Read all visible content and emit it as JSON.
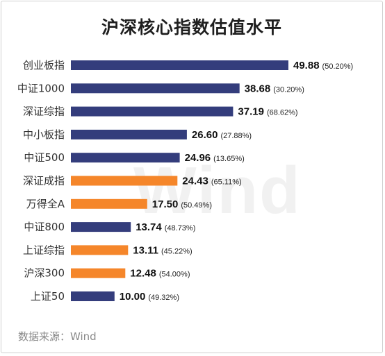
{
  "chart_data": {
    "type": "bar",
    "orientation": "horizontal",
    "title": "沪深核心指数估值水平",
    "categories": [
      "创业板指",
      "中证1000",
      "深证综指",
      "中小板指",
      "中证500",
      "深证成指",
      "万得全A",
      "中证800",
      "上证综指",
      "沪深300",
      "上证50"
    ],
    "values": [
      49.88,
      38.68,
      37.19,
      26.6,
      24.96,
      24.43,
      17.5,
      13.74,
      13.11,
      12.48,
      10.0
    ],
    "value_labels": [
      "49.88",
      "38.68",
      "37.19",
      "26.60",
      "24.96",
      "24.43",
      "17.50",
      "13.74",
      "13.11",
      "12.48",
      "10.00"
    ],
    "percentile_labels": [
      "(50.20%)",
      "(30.20%)",
      "(68.62%)",
      "(27.88%)",
      "(13.65%)",
      "(65.11%)",
      "(50.49%)",
      "(48.73%)",
      "(45.22%)",
      "(54.00%)",
      "(49.32%)"
    ],
    "bar_colors": [
      "#343d7c",
      "#343d7c",
      "#343d7c",
      "#343d7c",
      "#343d7c",
      "#f5862a",
      "#f5862a",
      "#343d7c",
      "#f5862a",
      "#f5862a",
      "#343d7c"
    ],
    "xlim": [
      0,
      49.88
    ],
    "grid": false,
    "legend": "none"
  },
  "colors": {
    "navy": "#343d7c",
    "orange": "#f5862a"
  },
  "watermark": "Wind",
  "source": "数据来源：Wind"
}
